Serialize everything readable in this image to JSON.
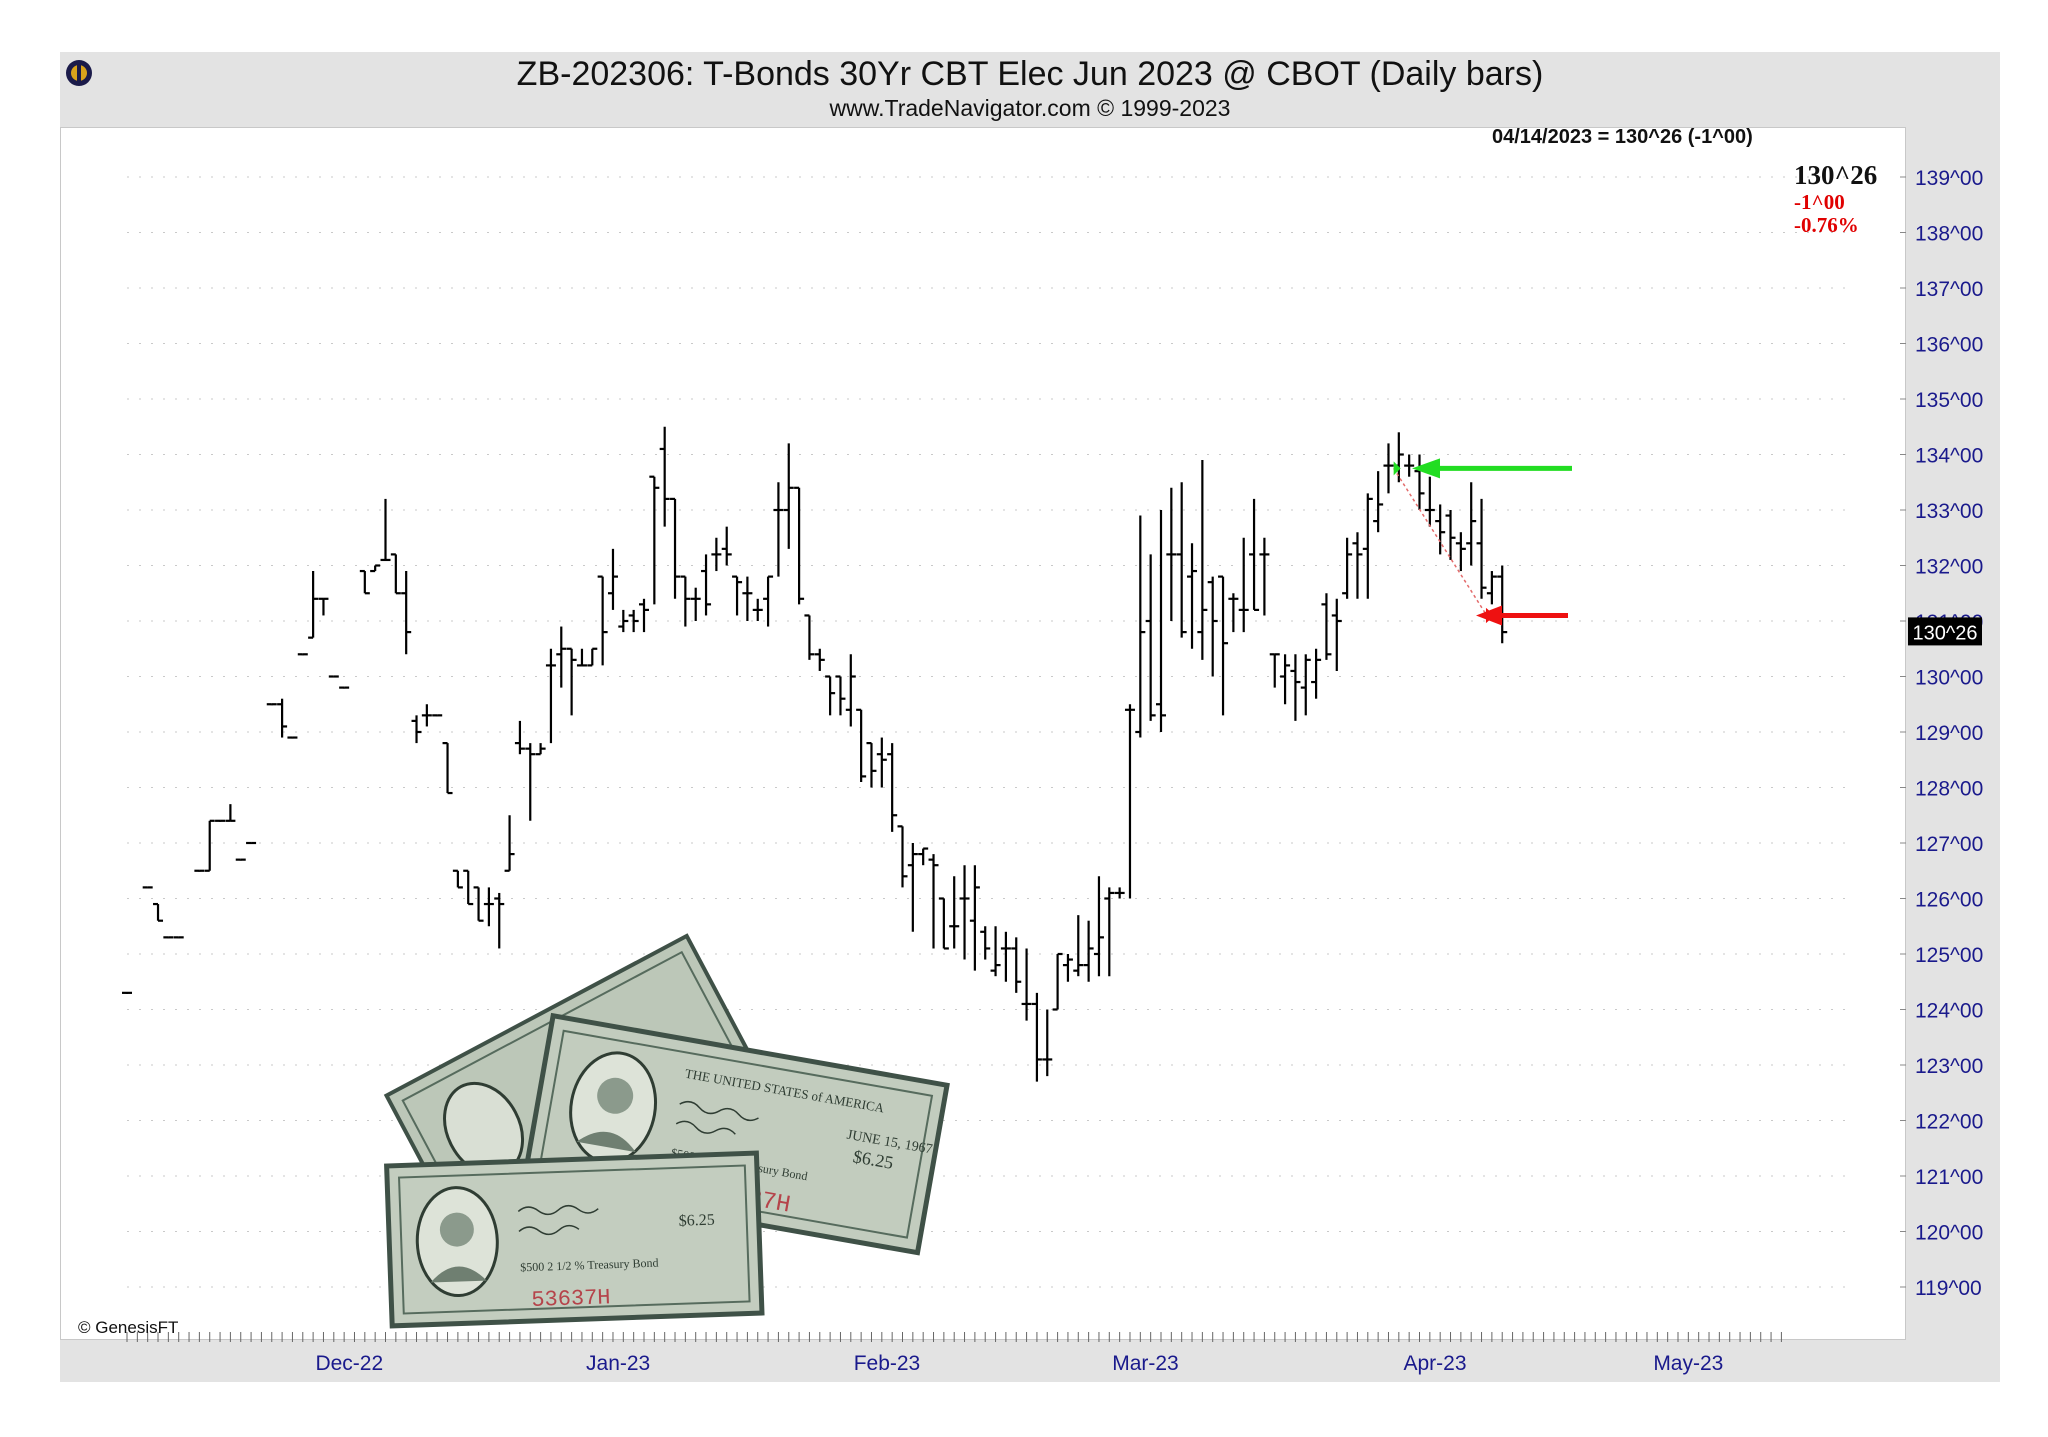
{
  "header": {
    "title": "ZB-202306:  T-Bonds 30Yr CBT Elec Jun 2023 @ CBOT  (Daily bars)",
    "subtitle": "www.TradeNavigator.com © 1999-2023"
  },
  "readout": {
    "date_line": "04/14/2023 = 130^26 (-1^00)",
    "last_price": "130^26",
    "change": "-1^00",
    "change_pct": "-0.76%"
  },
  "footer": {
    "copyright": "© GenesisFT"
  },
  "colors": {
    "bars": "#000000",
    "axis_text": "#1a1a8c",
    "green_arrow": "#22dd22",
    "red_arrow": "#ee1111",
    "last_price_box": "#000000",
    "frame_bg": "#e3e3e3"
  },
  "illustration": {
    "description_icon": "treasury-bond-certificates-icon",
    "texts": [
      "THE UNITED STATES of AMERICA",
      "JUNE 15, 1967",
      "$6.25",
      "$500 2 1/2 % Treasury Bond",
      "53637H"
    ]
  },
  "chart_data": {
    "type": "ohlc",
    "ylim": [
      118,
      140
    ],
    "y_ticks": [
      "139^00",
      "138^00",
      "137^00",
      "136^00",
      "135^00",
      "134^00",
      "133^00",
      "132^00",
      "131^00",
      "130^00",
      "129^00",
      "128^00",
      "127^00",
      "126^00",
      "125^00",
      "124^00",
      "123^00",
      "122^00",
      "121^00",
      "120^00",
      "119^00"
    ],
    "x_month_labels": [
      {
        "label": "Dec-22",
        "day": 21.5
      },
      {
        "label": "Jan-23",
        "day": 47.5
      },
      {
        "label": "Feb-23",
        "day": 73.5
      },
      {
        "label": "Mar-23",
        "day": 98.5
      },
      {
        "label": "Apr-23",
        "day": 126.5
      },
      {
        "label": "May-23",
        "day": 151
      }
    ],
    "x_domain": [
      -0.5,
      172.5
    ],
    "last_price_label": "130^26",
    "last_price_value": 130.8125,
    "bars": [
      {
        "d": 0,
        "o": 124.3,
        "h": 124.3,
        "l": 124.3,
        "c": 124.3
      },
      {
        "d": 2,
        "o": 126.2,
        "h": 126.2,
        "l": 126.2,
        "c": 126.2
      },
      {
        "d": 3,
        "o": 125.9,
        "h": 125.9,
        "l": 125.6,
        "c": 125.6
      },
      {
        "d": 4,
        "o": 125.3,
        "h": 125.3,
        "l": 125.3,
        "c": 125.3
      },
      {
        "d": 5,
        "o": 125.3,
        "h": 125.3,
        "l": 125.3,
        "c": 125.3
      },
      {
        "d": 7,
        "o": 126.5,
        "h": 126.5,
        "l": 126.5,
        "c": 126.5
      },
      {
        "d": 8,
        "o": 126.5,
        "h": 127.4,
        "l": 126.5,
        "c": 127.4
      },
      {
        "d": 9,
        "o": 127.4,
        "h": 127.4,
        "l": 127.4,
        "c": 127.4
      },
      {
        "d": 10,
        "o": 127.4,
        "h": 127.7,
        "l": 127.4,
        "c": 127.4
      },
      {
        "d": 11,
        "o": 126.7,
        "h": 126.7,
        "l": 126.7,
        "c": 126.7
      },
      {
        "d": 12,
        "o": 127.0,
        "h": 127.0,
        "l": 127.0,
        "c": 127.0
      },
      {
        "d": 14,
        "o": 129.5,
        "h": 129.5,
        "l": 129.5,
        "c": 129.5
      },
      {
        "d": 15,
        "o": 129.5,
        "h": 129.6,
        "l": 128.9,
        "c": 129.1
      },
      {
        "d": 16,
        "o": 128.9,
        "h": 128.9,
        "l": 128.9,
        "c": 128.9
      },
      {
        "d": 17,
        "o": 130.4,
        "h": 130.4,
        "l": 130.4,
        "c": 130.4
      },
      {
        "d": 18,
        "o": 130.7,
        "h": 131.9,
        "l": 130.7,
        "c": 131.4
      },
      {
        "d": 19,
        "o": 131.4,
        "h": 131.4,
        "l": 131.1,
        "c": 131.4
      },
      {
        "d": 20,
        "o": 130.0,
        "h": 130.0,
        "l": 130.0,
        "c": 130.0
      },
      {
        "d": 21,
        "o": 129.8,
        "h": 129.8,
        "l": 129.8,
        "c": 129.8
      },
      {
        "d": 23,
        "o": 131.9,
        "h": 131.9,
        "l": 131.5,
        "c": 131.5
      },
      {
        "d": 24,
        "o": 131.9,
        "h": 132.0,
        "l": 131.9,
        "c": 132.0
      },
      {
        "d": 25,
        "o": 132.1,
        "h": 133.2,
        "l": 132.1,
        "c": 132.1
      },
      {
        "d": 26,
        "o": 132.2,
        "h": 132.2,
        "l": 131.5,
        "c": 131.5
      },
      {
        "d": 27,
        "o": 131.5,
        "h": 131.9,
        "l": 130.4,
        "c": 130.8
      },
      {
        "d": 28,
        "o": 129.2,
        "h": 129.3,
        "l": 128.8,
        "c": 129.0
      },
      {
        "d": 29,
        "o": 129.3,
        "h": 129.5,
        "l": 129.1,
        "c": 129.3
      },
      {
        "d": 30,
        "o": 129.3,
        "h": 129.3,
        "l": 129.3,
        "c": 129.3
      },
      {
        "d": 31,
        "o": 128.8,
        "h": 128.8,
        "l": 127.9,
        "c": 127.9
      },
      {
        "d": 32,
        "o": 126.5,
        "h": 126.5,
        "l": 126.2,
        "c": 126.2
      },
      {
        "d": 33,
        "o": 126.5,
        "h": 126.5,
        "l": 125.9,
        "c": 125.9
      },
      {
        "d": 34,
        "o": 126.2,
        "h": 126.2,
        "l": 125.6,
        "c": 125.6
      },
      {
        "d": 35,
        "o": 125.9,
        "h": 126.2,
        "l": 125.5,
        "c": 125.9
      },
      {
        "d": 36,
        "o": 126.0,
        "h": 126.1,
        "l": 125.1,
        "c": 125.9
      },
      {
        "d": 37,
        "o": 126.5,
        "h": 127.5,
        "l": 126.5,
        "c": 126.8
      },
      {
        "d": 38,
        "o": 128.8,
        "h": 129.2,
        "l": 128.6,
        "c": 128.7
      },
      {
        "d": 39,
        "o": 128.7,
        "h": 128.8,
        "l": 127.4,
        "c": 128.6
      },
      {
        "d": 40,
        "o": 128.6,
        "h": 128.8,
        "l": 128.6,
        "c": 128.7
      },
      {
        "d": 41,
        "o": 130.2,
        "h": 130.5,
        "l": 128.8,
        "c": 130.2
      },
      {
        "d": 42,
        "o": 130.4,
        "h": 130.9,
        "l": 129.8,
        "c": 130.5
      },
      {
        "d": 43,
        "o": 130.5,
        "h": 130.5,
        "l": 129.3,
        "c": 130.3
      },
      {
        "d": 44,
        "o": 130.2,
        "h": 130.5,
        "l": 130.2,
        "c": 130.2
      },
      {
        "d": 45,
        "o": 130.2,
        "h": 130.5,
        "l": 130.2,
        "c": 130.5
      },
      {
        "d": 46,
        "o": 131.8,
        "h": 131.8,
        "l": 130.2,
        "c": 130.8
      },
      {
        "d": 47,
        "o": 131.5,
        "h": 132.3,
        "l": 131.2,
        "c": 131.8
      },
      {
        "d": 48,
        "o": 130.9,
        "h": 131.2,
        "l": 130.8,
        "c": 131.0
      },
      {
        "d": 49,
        "o": 131.1,
        "h": 131.2,
        "l": 130.8,
        "c": 131.0
      },
      {
        "d": 50,
        "o": 131.3,
        "h": 131.4,
        "l": 130.8,
        "c": 131.2
      },
      {
        "d": 51,
        "o": 133.6,
        "h": 133.6,
        "l": 131.3,
        "c": 133.4
      },
      {
        "d": 52,
        "o": 134.1,
        "h": 134.5,
        "l": 132.7,
        "c": 133.2
      },
      {
        "d": 53,
        "o": 133.2,
        "h": 133.2,
        "l": 131.4,
        "c": 131.8
      },
      {
        "d": 54,
        "o": 131.8,
        "h": 131.8,
        "l": 130.9,
        "c": 131.4
      },
      {
        "d": 55,
        "o": 131.4,
        "h": 131.6,
        "l": 131.0,
        "c": 131.4
      },
      {
        "d": 56,
        "o": 131.9,
        "h": 132.2,
        "l": 131.1,
        "c": 131.3
      },
      {
        "d": 57,
        "o": 132.2,
        "h": 132.5,
        "l": 131.9,
        "c": 132.2
      },
      {
        "d": 58,
        "o": 132.3,
        "h": 132.7,
        "l": 132.0,
        "c": 132.2
      },
      {
        "d": 59,
        "o": 131.8,
        "h": 131.8,
        "l": 131.1,
        "c": 131.7
      },
      {
        "d": 60,
        "o": 131.5,
        "h": 131.8,
        "l": 131.0,
        "c": 131.5
      },
      {
        "d": 61,
        "o": 131.2,
        "h": 131.4,
        "l": 131.0,
        "c": 131.2
      },
      {
        "d": 62,
        "o": 131.4,
        "h": 131.8,
        "l": 130.9,
        "c": 131.8
      },
      {
        "d": 63,
        "o": 133.0,
        "h": 133.5,
        "l": 131.8,
        "c": 133.0
      },
      {
        "d": 64,
        "o": 133.0,
        "h": 134.2,
        "l": 132.3,
        "c": 133.4
      },
      {
        "d": 65,
        "o": 133.4,
        "h": 133.4,
        "l": 131.3,
        "c": 131.4
      },
      {
        "d": 66,
        "o": 131.1,
        "h": 131.1,
        "l": 130.3,
        "c": 130.4
      },
      {
        "d": 67,
        "o": 130.4,
        "h": 130.5,
        "l": 130.1,
        "c": 130.3
      },
      {
        "d": 68,
        "o": 130.0,
        "h": 130.0,
        "l": 129.3,
        "c": 129.7
      },
      {
        "d": 69,
        "o": 130.0,
        "h": 130.0,
        "l": 129.3,
        "c": 129.6
      },
      {
        "d": 70,
        "o": 129.4,
        "h": 130.4,
        "l": 129.1,
        "c": 130.0
      },
      {
        "d": 71,
        "o": 129.4,
        "h": 129.4,
        "l": 128.1,
        "c": 128.2
      },
      {
        "d": 72,
        "o": 128.8,
        "h": 128.8,
        "l": 128.0,
        "c": 128.3
      },
      {
        "d": 73,
        "o": 128.6,
        "h": 128.9,
        "l": 128.0,
        "c": 128.5
      },
      {
        "d": 74,
        "o": 128.6,
        "h": 128.8,
        "l": 127.2,
        "c": 127.5
      },
      {
        "d": 75,
        "o": 127.3,
        "h": 127.3,
        "l": 126.2,
        "c": 126.4
      },
      {
        "d": 76,
        "o": 126.6,
        "h": 127.0,
        "l": 125.4,
        "c": 126.8
      },
      {
        "d": 77,
        "o": 126.8,
        "h": 126.9,
        "l": 126.6,
        "c": 126.9
      },
      {
        "d": 78,
        "o": 126.7,
        "h": 126.8,
        "l": 125.1,
        "c": 126.6
      },
      {
        "d": 79,
        "o": 126.0,
        "h": 126.0,
        "l": 125.1,
        "c": 125.1
      },
      {
        "d": 80,
        "o": 125.5,
        "h": 126.4,
        "l": 125.1,
        "c": 125.5
      },
      {
        "d": 81,
        "o": 126.0,
        "h": 126.6,
        "l": 124.9,
        "c": 126.0
      },
      {
        "d": 82,
        "o": 125.6,
        "h": 126.6,
        "l": 124.7,
        "c": 126.2
      },
      {
        "d": 83,
        "o": 125.4,
        "h": 125.5,
        "l": 124.9,
        "c": 125.1
      },
      {
        "d": 84,
        "o": 124.7,
        "h": 125.5,
        "l": 124.6,
        "c": 124.8
      },
      {
        "d": 85,
        "o": 125.1,
        "h": 125.4,
        "l": 124.5,
        "c": 125.1
      },
      {
        "d": 86,
        "o": 125.1,
        "h": 125.3,
        "l": 124.3,
        "c": 124.5
      },
      {
        "d": 87,
        "o": 124.1,
        "h": 125.1,
        "l": 123.8,
        "c": 124.1
      },
      {
        "d": 88,
        "o": 124.1,
        "h": 124.3,
        "l": 122.7,
        "c": 123.1
      },
      {
        "d": 89,
        "o": 123.1,
        "h": 124.0,
        "l": 122.8,
        "c": 123.1
      },
      {
        "d": 90,
        "o": 124.0,
        "h": 125.0,
        "l": 124.0,
        "c": 125.0
      },
      {
        "d": 91,
        "o": 124.8,
        "h": 125.0,
        "l": 124.5,
        "c": 124.9
      },
      {
        "d": 92,
        "o": 124.7,
        "h": 125.7,
        "l": 124.6,
        "c": 124.8
      },
      {
        "d": 93,
        "o": 124.8,
        "h": 125.6,
        "l": 124.5,
        "c": 125.1
      },
      {
        "d": 94,
        "o": 125.0,
        "h": 126.4,
        "l": 124.6,
        "c": 125.3
      },
      {
        "d": 95,
        "o": 126.0,
        "h": 126.2,
        "l": 124.6,
        "c": 126.1
      },
      {
        "d": 96,
        "o": 126.1,
        "h": 126.2,
        "l": 126.0,
        "c": 126.1
      },
      {
        "d": 97,
        "o": 129.4,
        "h": 129.5,
        "l": 126.0,
        "c": 129.4
      },
      {
        "d": 98,
        "o": 129.0,
        "h": 132.9,
        "l": 128.9,
        "c": 130.8
      },
      {
        "d": 99,
        "o": 131.0,
        "h": 132.2,
        "l": 129.2,
        "c": 129.3
      },
      {
        "d": 100,
        "o": 129.5,
        "h": 133.0,
        "l": 129.0,
        "c": 129.3
      },
      {
        "d": 101,
        "o": 132.2,
        "h": 133.4,
        "l": 131.0,
        "c": 132.2
      },
      {
        "d": 102,
        "o": 132.2,
        "h": 133.5,
        "l": 130.7,
        "c": 130.8
      },
      {
        "d": 103,
        "o": 131.8,
        "h": 132.4,
        "l": 130.5,
        "c": 131.9
      },
      {
        "d": 104,
        "o": 130.8,
        "h": 133.9,
        "l": 130.3,
        "c": 131.2
      },
      {
        "d": 105,
        "o": 131.7,
        "h": 131.8,
        "l": 130.0,
        "c": 131.0
      },
      {
        "d": 106,
        "o": 131.8,
        "h": 131.8,
        "l": 129.3,
        "c": 130.6
      },
      {
        "d": 107,
        "o": 131.4,
        "h": 131.5,
        "l": 130.8,
        "c": 131.4
      },
      {
        "d": 108,
        "o": 131.2,
        "h": 132.5,
        "l": 130.8,
        "c": 131.2
      },
      {
        "d": 109,
        "o": 132.2,
        "h": 133.2,
        "l": 131.2,
        "c": 131.2
      },
      {
        "d": 110,
        "o": 132.2,
        "h": 132.5,
        "l": 131.1,
        "c": 132.2
      },
      {
        "d": 111,
        "o": 130.4,
        "h": 130.4,
        "l": 129.8,
        "c": 130.4
      },
      {
        "d": 112,
        "o": 130.0,
        "h": 130.4,
        "l": 129.5,
        "c": 130.2
      },
      {
        "d": 113,
        "o": 130.1,
        "h": 130.4,
        "l": 129.2,
        "c": 129.9
      },
      {
        "d": 114,
        "o": 129.8,
        "h": 130.4,
        "l": 129.3,
        "c": 130.3
      },
      {
        "d": 115,
        "o": 129.9,
        "h": 130.5,
        "l": 129.6,
        "c": 130.3
      },
      {
        "d": 116,
        "o": 131.3,
        "h": 131.5,
        "l": 130.3,
        "c": 130.4
      },
      {
        "d": 117,
        "o": 131.1,
        "h": 131.4,
        "l": 130.1,
        "c": 131.0
      },
      {
        "d": 118,
        "o": 131.5,
        "h": 132.5,
        "l": 131.4,
        "c": 132.2
      },
      {
        "d": 119,
        "o": 132.4,
        "h": 132.6,
        "l": 131.4,
        "c": 132.2
      },
      {
        "d": 120,
        "o": 132.3,
        "h": 133.3,
        "l": 131.4,
        "c": 133.2
      },
      {
        "d": 121,
        "o": 132.8,
        "h": 133.7,
        "l": 132.6,
        "c": 133.1
      },
      {
        "d": 122,
        "o": 133.8,
        "h": 134.2,
        "l": 133.3,
        "c": 133.8
      },
      {
        "d": 123,
        "o": 133.8,
        "h": 134.4,
        "l": 133.5,
        "c": 134.0
      },
      {
        "d": 124,
        "o": 133.8,
        "h": 134.0,
        "l": 133.6,
        "c": 133.8
      },
      {
        "d": 125,
        "o": 133.7,
        "h": 134.0,
        "l": 133.0,
        "c": 133.3
      },
      {
        "d": 126,
        "o": 133.0,
        "h": 133.6,
        "l": 132.7,
        "c": 133.0
      },
      {
        "d": 127,
        "o": 132.8,
        "h": 133.1,
        "l": 132.2,
        "c": 132.6
      },
      {
        "d": 128,
        "o": 132.9,
        "h": 133.0,
        "l": 132.1,
        "c": 132.5
      },
      {
        "d": 129,
        "o": 132.4,
        "h": 132.6,
        "l": 131.9,
        "c": 132.3
      },
      {
        "d": 130,
        "o": 132.4,
        "h": 133.5,
        "l": 132.0,
        "c": 132.8
      },
      {
        "d": 131,
        "o": 132.4,
        "h": 133.2,
        "l": 131.4,
        "c": 131.6
      },
      {
        "d": 132,
        "o": 131.5,
        "h": 131.9,
        "l": 131.3,
        "c": 131.8
      },
      {
        "d": 133,
        "o": 131.8,
        "h": 132.0,
        "l": 130.6,
        "c": 130.8
      }
    ]
  }
}
